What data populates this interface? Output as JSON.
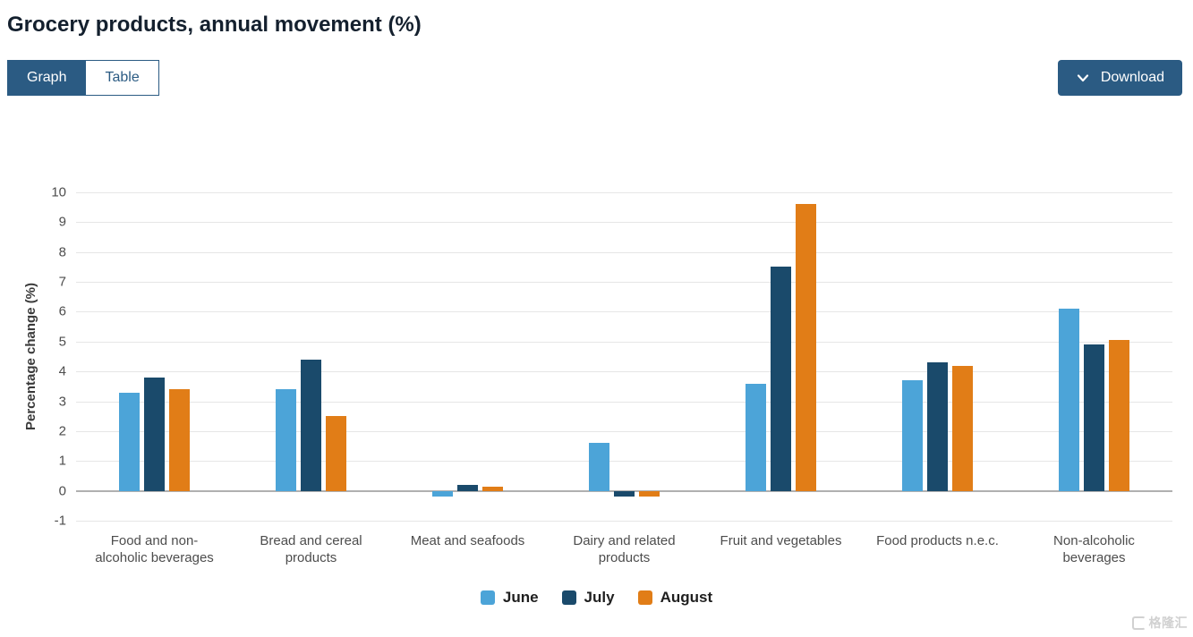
{
  "header": {
    "title": "Grocery products, annual movement (%)"
  },
  "toolbar": {
    "tabs": [
      {
        "label": "Graph",
        "active": true
      },
      {
        "label": "Table",
        "active": false
      }
    ],
    "download_label": "Download",
    "download_icon": "chevron-down-icon"
  },
  "colors": {
    "accent": "#2b5b83",
    "june": "#4ca4d8",
    "july": "#1a4a6b",
    "august": "#e17d17",
    "gridline": "#e6e6e6",
    "zero_line": "#b0b0b0"
  },
  "chart_data": {
    "type": "bar",
    "title": "Grocery products, annual movement (%)",
    "xlabel": "",
    "ylabel": "Percentage change (%)",
    "ylim": [
      -1,
      10
    ],
    "ytick_step": 1,
    "grid": true,
    "legend_position": "bottom",
    "categories": [
      "Food and non-alcoholic beverages",
      "Bread and cereal products",
      "Meat and seafoods",
      "Dairy and related products",
      "Fruit and vegetables",
      "Food products n.e.c.",
      "Non-alcoholic beverages"
    ],
    "series": [
      {
        "name": "June",
        "color": "#4ca4d8",
        "values": [
          3.3,
          3.4,
          -0.2,
          1.6,
          3.6,
          3.7,
          6.1
        ]
      },
      {
        "name": "July",
        "color": "#1a4a6b",
        "values": [
          3.8,
          4.4,
          0.2,
          -0.2,
          7.5,
          4.3,
          4.9
        ]
      },
      {
        "name": "August",
        "color": "#e17d17",
        "values": [
          3.4,
          2.5,
          0.15,
          -0.2,
          9.6,
          4.2,
          5.05
        ]
      }
    ]
  },
  "watermark": {
    "text": "格隆汇"
  }
}
